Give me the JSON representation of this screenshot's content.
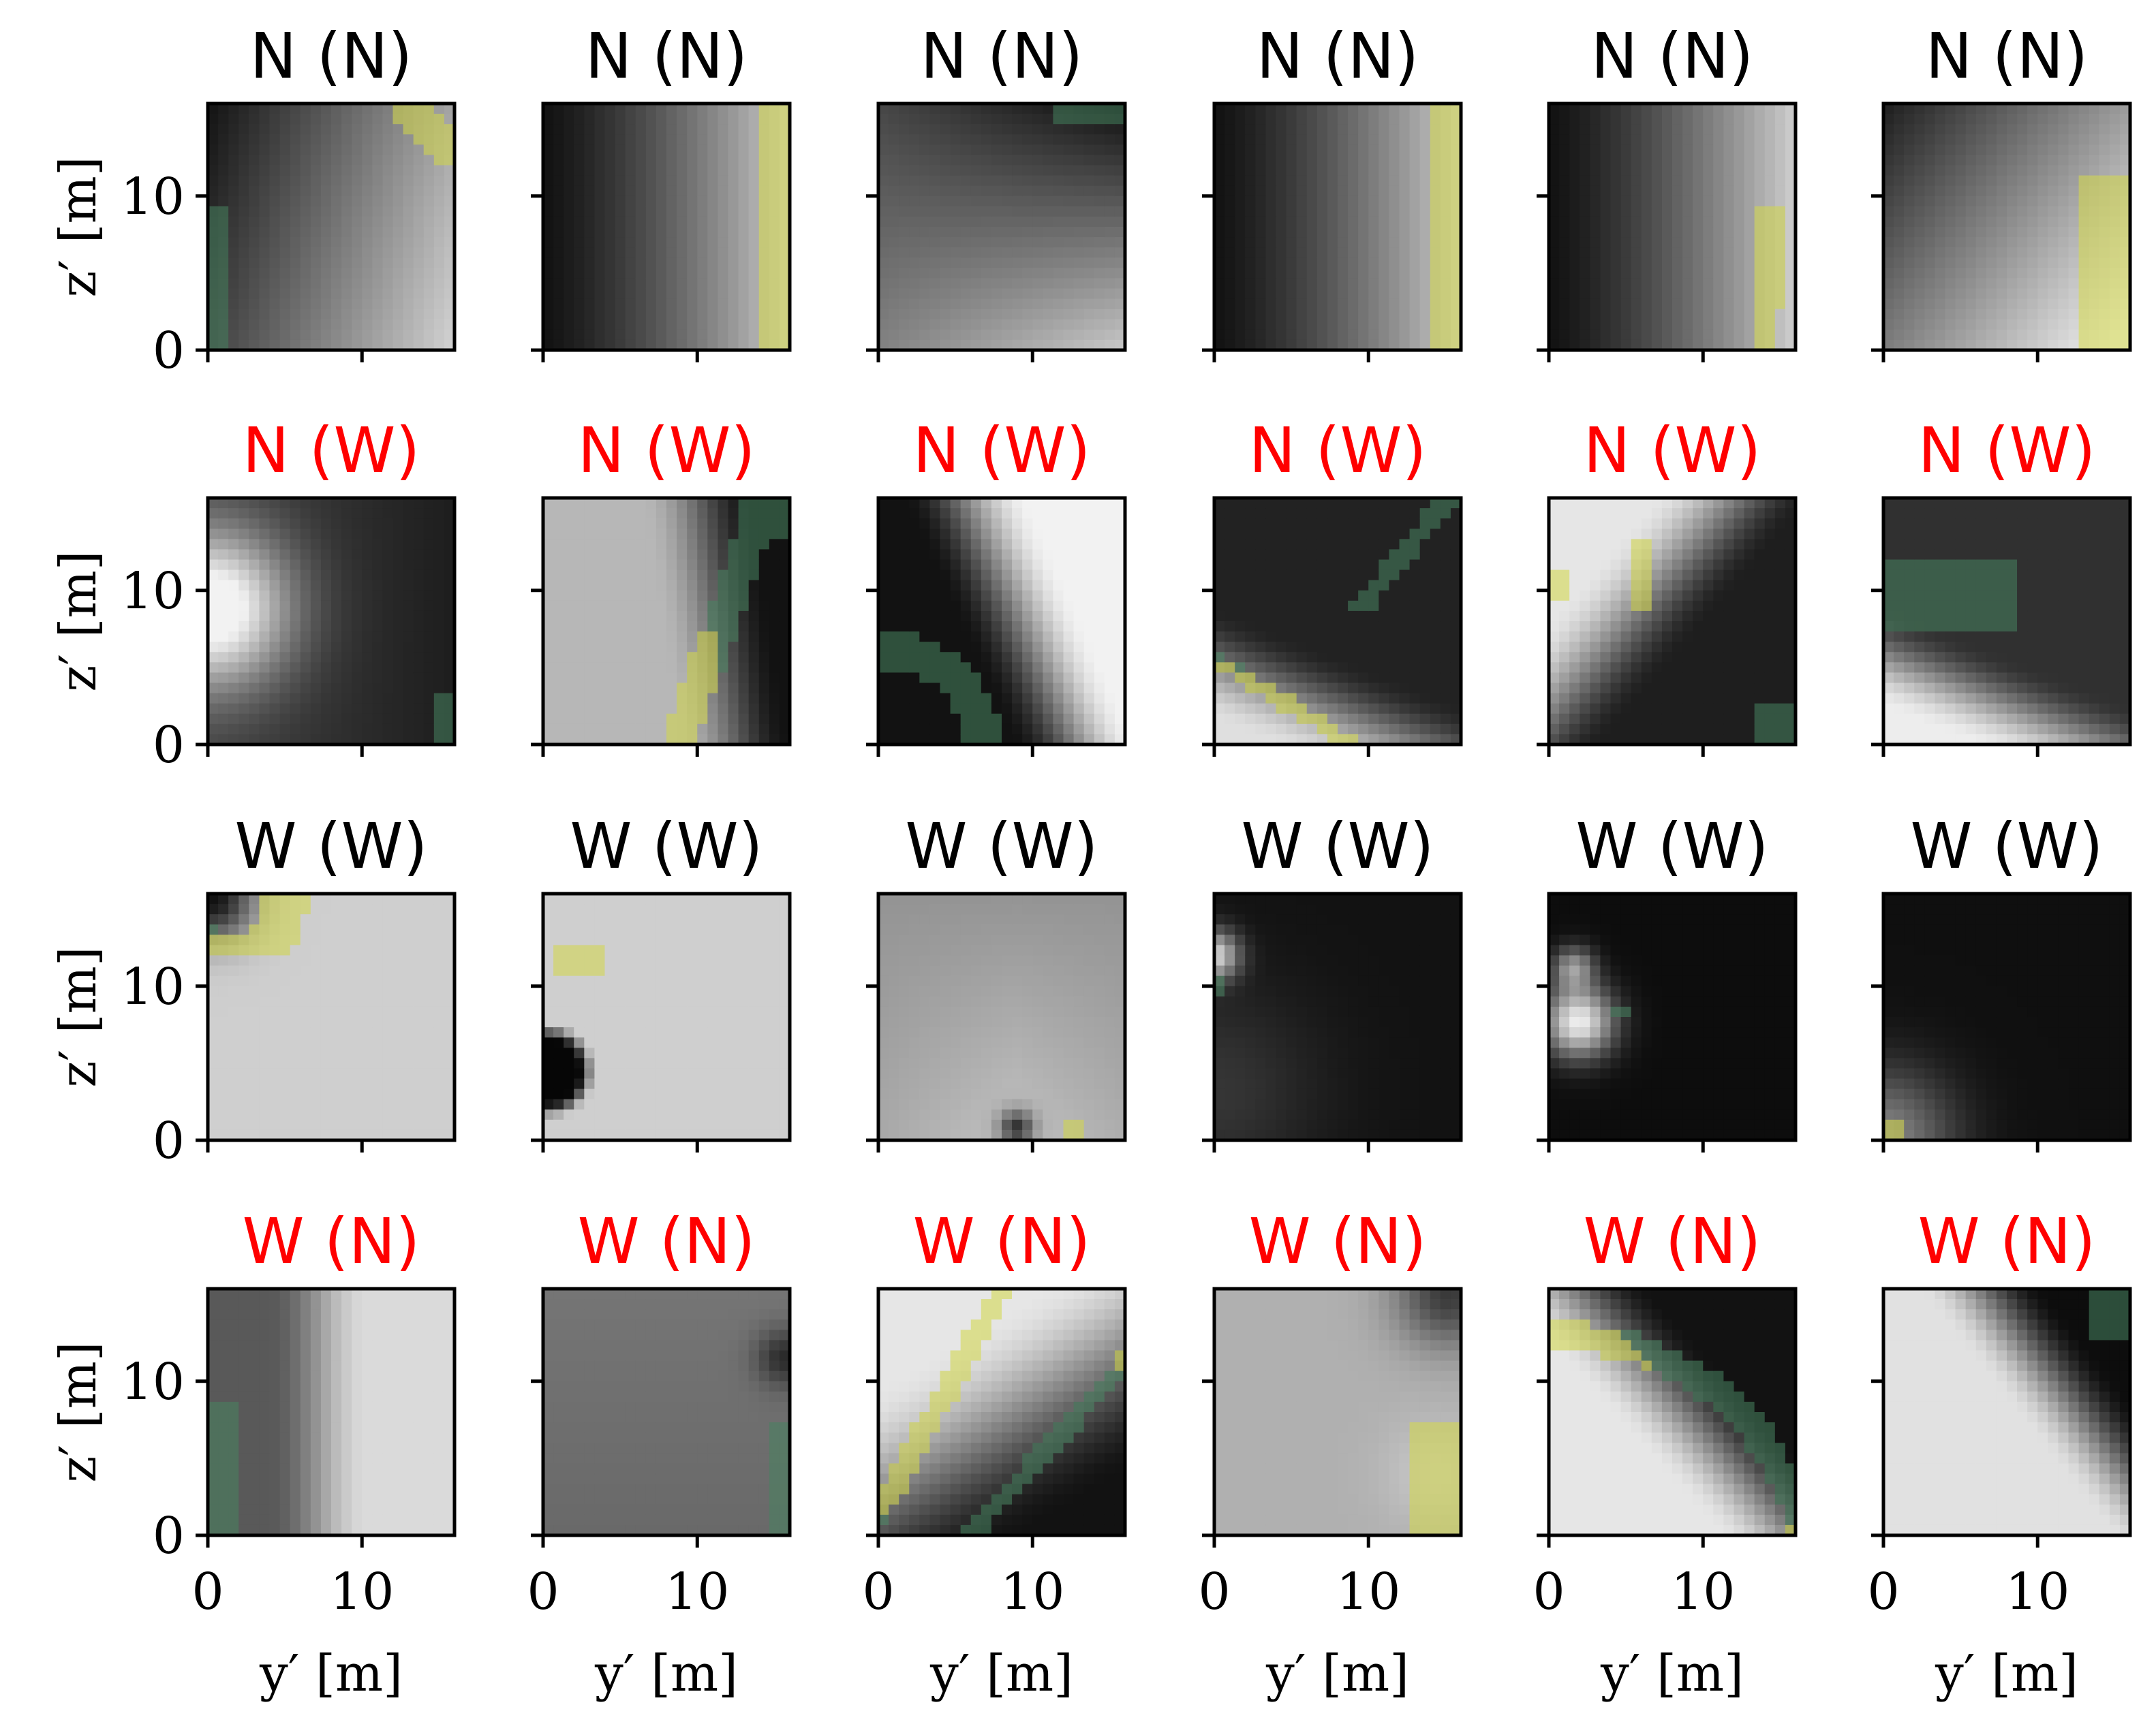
{
  "chart_data": {
    "type": "heatmap",
    "layout": {
      "rows": 4,
      "cols": 6
    },
    "xlabel": "y′ [m]",
    "ylabel": "z′ [m]",
    "xlim": [
      0,
      16
    ],
    "ylim": [
      0,
      16
    ],
    "x_ticks": [
      "0",
      "10"
    ],
    "y_ticks": [
      "0",
      "10"
    ],
    "colormap": "gray",
    "overlay_color": "yellow-green",
    "colors": {
      "black_title": "#000000",
      "red_title": "#ff0000"
    },
    "rows": [
      {
        "title": "N (N)",
        "title_color": "#000000",
        "panels": [
          {
            "pattern": "diag_up_right",
            "overlay": "top-right corner, left edge"
          },
          {
            "pattern": "horizontal_gradient",
            "overlay": "right edge"
          },
          {
            "pattern": "medium_gray_tilted",
            "overlay": "top-right strip"
          },
          {
            "pattern": "horizontal_gradient",
            "overlay": "right edge"
          },
          {
            "pattern": "horizontal_gradient",
            "overlay": "lower-right edge"
          },
          {
            "pattern": "diag_up_right_bright",
            "overlay": "lower-right edge"
          }
        ]
      },
      {
        "title": "N (W)",
        "title_color": "#ff0000",
        "panels": [
          {
            "pattern": "bright_left_blob",
            "overlay": "bottom-right corner"
          },
          {
            "pattern": "light_with_dark_right",
            "overlay": "diagonal band"
          },
          {
            "pattern": "dark_with_bright_top_right",
            "overlay": "bottom-left curve"
          },
          {
            "pattern": "bright_bottom_left",
            "overlay": "bottom-left diagonal"
          },
          {
            "pattern": "bright_top_left",
            "overlay": "scattered"
          },
          {
            "pattern": "bright_bottom_left_teal",
            "overlay": "left band"
          }
        ]
      },
      {
        "title": "W (W)",
        "title_color": "#000000",
        "panels": [
          {
            "pattern": "light_dark_top_left",
            "overlay": "top-left"
          },
          {
            "pattern": "light_dark_left_circle",
            "overlay": "top-left points"
          },
          {
            "pattern": "gray_dark_bottom_dot",
            "overlay": "bottom point"
          },
          {
            "pattern": "dark_bright_left",
            "overlay": "left point"
          },
          {
            "pattern": "dark_bright_blob",
            "overlay": "center point"
          },
          {
            "pattern": "dark_bright_bottom_left",
            "overlay": "bottom-left point"
          }
        ]
      },
      {
        "title": "W (N)",
        "title_color": "#ff0000",
        "panels": [
          {
            "pattern": "bright_right",
            "overlay": "left edge"
          },
          {
            "pattern": "gray_dark_right",
            "overlay": "right edge"
          },
          {
            "pattern": "bright_top_left_dark",
            "overlay": "two diagonal bands"
          },
          {
            "pattern": "light_gray",
            "overlay": "right edge"
          },
          {
            "pattern": "bright_bottom_left_dark_top_right",
            "overlay": "arc band"
          },
          {
            "pattern": "bright_dark_top_right",
            "overlay": "top-right corner"
          }
        ]
      }
    ]
  }
}
